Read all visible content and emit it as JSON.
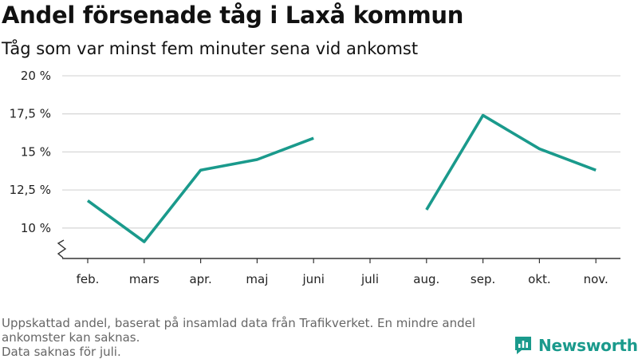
{
  "title": "Andel försenade tåg i Laxå kommun",
  "subtitle": "Tåg som var minst fem minuter sena vid ankomst",
  "footnote": {
    "line1": "Uppskattad andel, baserat på insamlad data från Trafikverket. En mindre andel ankomster kan saknas.",
    "line2": "Data saknas för juli."
  },
  "brand": {
    "name": "Newsworthy",
    "icon": "newsworthy-logo-icon",
    "color": "#1a9a8c"
  },
  "chart_data": {
    "type": "line",
    "title": "Andel försenade tåg i Laxå kommun",
    "subtitle": "Tåg som var minst fem minuter sena vid ankomst",
    "categories": [
      "feb.",
      "mars",
      "apr.",
      "maj",
      "juni",
      "juli",
      "aug.",
      "sep.",
      "okt.",
      "nov."
    ],
    "series": [
      {
        "values": [
          11.8,
          9.1,
          13.8,
          14.5,
          15.9,
          null,
          11.2,
          17.4,
          15.2,
          13.8
        ]
      }
    ],
    "ylim": [
      8.0,
      20.0
    ],
    "yticks": [
      10,
      12.5,
      15,
      17.5,
      20
    ],
    "ytick_labels": [
      "10 %",
      "12,5 %",
      "15 %",
      "17,5 %",
      "20 %"
    ],
    "axis_break": true,
    "grid": true,
    "line_color": "#1a9a8c",
    "grid_color": "#d9d9d9",
    "axis_color": "#333333"
  }
}
